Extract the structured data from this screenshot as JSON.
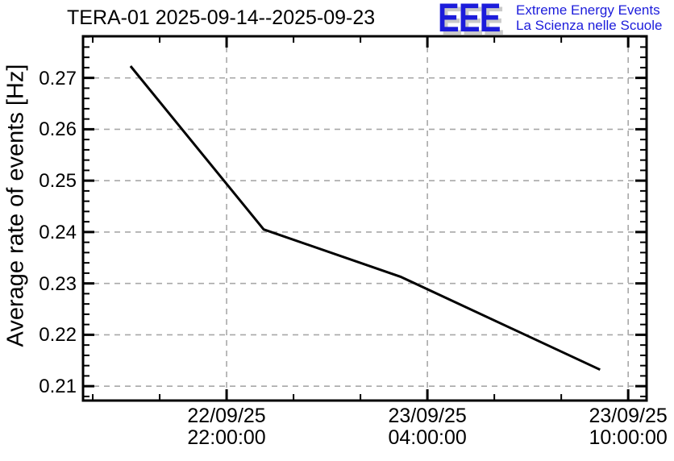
{
  "header": {
    "title": "TERA-01 2025-09-14--2025-09-23",
    "logo": {
      "acronym": "EEE",
      "tagline1": "Extreme Energy Events",
      "tagline2": "La Scienza nelle Scuole",
      "blue": "#1c1cdb",
      "shadow_gray": "#c9c9c9"
    }
  },
  "chart_data": {
    "type": "line",
    "title": "TERA-01 2025-09-14--2025-09-23",
    "ylabel": "Average rate of events [Hz]",
    "xlabel": "",
    "line_color": "#000000",
    "frame_color": "#000000",
    "grid": true,
    "grid_color": "#a8a8a8",
    "ylim": [
      0.2072,
      0.2781
    ],
    "y_major_step": 0.01,
    "y_minor_step": 0.002,
    "y_ticks": [
      {
        "label": "0.27",
        "value": 0.27
      },
      {
        "label": "0.26",
        "value": 0.26
      },
      {
        "label": "0.25",
        "value": 0.25
      },
      {
        "label": "0.24",
        "value": 0.24
      },
      {
        "label": "0.23",
        "value": 0.23
      },
      {
        "label": "0.22",
        "value": 0.22
      },
      {
        "label": "0.21",
        "value": 0.21
      }
    ],
    "xlim_hours": [
      -4.29,
      12.55
    ],
    "x_minor_step_hours": 2,
    "x_ticks": [
      {
        "date": "22/09/25",
        "time": "22:00:00",
        "hours": 0
      },
      {
        "date": "23/09/25",
        "time": "04:00:00",
        "hours": 6
      },
      {
        "date": "23/09/25",
        "time": "10:00:00",
        "hours": 12
      }
    ],
    "points": [
      {
        "time": "22/09/25 19:10",
        "hours": -2.87,
        "rate": 0.2723
      },
      {
        "time": "22/09/25 23:05",
        "hours": 1.11,
        "rate": 0.2405
      },
      {
        "time": "23/09/25 03:10",
        "hours": 5.2,
        "rate": 0.2313
      },
      {
        "time": "23/09/25 09:10",
        "hours": 11.16,
        "rate": 0.2132
      }
    ]
  }
}
